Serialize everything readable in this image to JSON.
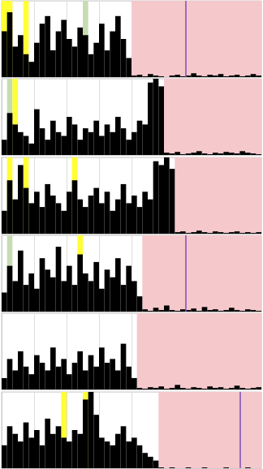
{
  "chart_data": [
    {
      "type": "histogram",
      "bins": [
        0,
        1,
        2,
        3,
        4,
        5,
        6,
        7,
        8,
        9,
        10,
        11,
        12,
        13,
        14,
        15,
        16,
        17,
        18,
        19,
        20,
        21,
        22,
        23,
        24,
        25,
        26,
        27,
        28,
        29,
        30,
        31,
        32,
        33,
        34,
        35,
        36,
        37,
        38,
        39,
        40,
        41,
        42,
        43,
        44,
        45,
        46,
        47,
        48
      ],
      "values": [
        60,
        85,
        40,
        55,
        30,
        20,
        45,
        70,
        80,
        35,
        60,
        75,
        50,
        40,
        65,
        55,
        30,
        45,
        70,
        35,
        60,
        80,
        50,
        25,
        2,
        3,
        1,
        4,
        2,
        1,
        0,
        2,
        3,
        1,
        2,
        5,
        2,
        1,
        3,
        2,
        4,
        1,
        2,
        3,
        1,
        2,
        4,
        2
      ],
      "color": "#000000",
      "xlim": [
        0,
        48
      ],
      "ylim": [
        0,
        100
      ],
      "xticks": [
        0,
        6,
        12,
        18,
        24,
        30,
        36,
        42,
        48
      ],
      "yticks": [
        0,
        100
      ],
      "grid": true,
      "tick_labels": false,
      "bands": [
        {
          "start": 0,
          "end": 2,
          "color": "#ffff33"
        },
        {
          "start": 4,
          "end": 5,
          "color": "#ffff33"
        },
        {
          "start": 15,
          "end": 16,
          "color": "#c8dcb4"
        },
        {
          "start": 24,
          "end": 48,
          "color": "#f5c8cc"
        }
      ],
      "lines": [
        {
          "x": 34,
          "color": "#7b4fb0"
        }
      ]
    },
    {
      "type": "histogram",
      "bins": [
        0,
        1,
        2,
        3,
        4,
        5,
        6,
        7,
        8,
        9,
        10,
        11,
        12,
        13,
        14,
        15,
        16,
        17,
        18,
        19,
        20,
        21,
        22,
        23,
        24,
        25,
        26,
        27,
        28,
        29,
        30,
        31,
        32,
        33,
        34,
        35,
        36,
        37,
        38,
        39,
        40,
        41,
        42,
        43,
        44,
        45,
        46,
        47,
        48
      ],
      "values": [
        20,
        55,
        40,
        30,
        25,
        15,
        60,
        35,
        20,
        45,
        30,
        25,
        50,
        40,
        20,
        35,
        30,
        45,
        25,
        40,
        30,
        50,
        35,
        20,
        30,
        45,
        40,
        95,
        100,
        90,
        3,
        2,
        4,
        1,
        2,
        3,
        5,
        2,
        1,
        3,
        2,
        4,
        3,
        2,
        5,
        3,
        2,
        1
      ],
      "color": "#000000",
      "xlim": [
        0,
        48
      ],
      "ylim": [
        0,
        100
      ],
      "xticks": [
        0,
        6,
        12,
        18,
        24,
        30,
        36,
        42,
        48
      ],
      "yticks": [
        0,
        100
      ],
      "grid": true,
      "tick_labels": false,
      "bands": [
        {
          "start": 1,
          "end": 2,
          "color": "#c8dcb4"
        },
        {
          "start": 2,
          "end": 3,
          "color": "#ffff33"
        },
        {
          "start": 30,
          "end": 48,
          "color": "#f5c8cc"
        }
      ],
      "lines": []
    },
    {
      "type": "histogram",
      "bins": [
        0,
        1,
        2,
        3,
        4,
        5,
        6,
        7,
        8,
        9,
        10,
        11,
        12,
        13,
        14,
        15,
        16,
        17,
        18,
        19,
        20,
        21,
        22,
        23,
        24,
        25,
        26,
        27,
        28,
        29,
        30,
        31,
        32,
        33,
        34,
        35,
        36,
        37,
        38,
        39,
        40,
        41,
        42,
        43,
        44,
        45,
        46,
        47,
        48
      ],
      "values": [
        30,
        70,
        45,
        90,
        60,
        40,
        55,
        35,
        65,
        50,
        40,
        30,
        55,
        70,
        45,
        35,
        50,
        60,
        40,
        55,
        30,
        45,
        65,
        40,
        50,
        35,
        55,
        45,
        95,
        90,
        100,
        85,
        2,
        3,
        1,
        2,
        4,
        2,
        1,
        3,
        2,
        1,
        2,
        3,
        1,
        2,
        1,
        2
      ],
      "color": "#000000",
      "xlim": [
        0,
        48
      ],
      "ylim": [
        0,
        100
      ],
      "xticks": [
        0,
        6,
        12,
        18,
        24,
        30,
        36,
        42,
        48
      ],
      "yticks": [
        0,
        100
      ],
      "grid": true,
      "tick_labels": false,
      "bands": [
        {
          "start": 1,
          "end": 2,
          "color": "#ffff33"
        },
        {
          "start": 4,
          "end": 5,
          "color": "#ffff33"
        },
        {
          "start": 13,
          "end": 14,
          "color": "#ffff33"
        },
        {
          "start": 32,
          "end": 48,
          "color": "#f5c8cc"
        }
      ],
      "lines": []
    },
    {
      "type": "histogram",
      "bins": [
        0,
        1,
        2,
        3,
        4,
        5,
        6,
        7,
        8,
        9,
        10,
        11,
        12,
        13,
        14,
        15,
        16,
        17,
        18,
        19,
        20,
        21,
        22,
        23,
        24,
        25,
        26,
        27,
        28,
        29,
        30,
        31,
        32,
        33,
        34,
        35,
        36,
        37,
        38,
        39,
        40,
        41,
        42,
        43,
        44,
        45,
        46,
        47,
        48
      ],
      "values": [
        25,
        60,
        40,
        80,
        35,
        50,
        30,
        70,
        55,
        45,
        85,
        40,
        60,
        35,
        75,
        50,
        40,
        65,
        30,
        55,
        45,
        70,
        35,
        60,
        40,
        20,
        3,
        1,
        5,
        2,
        8,
        2,
        1,
        3,
        2,
        4,
        1,
        6,
        2,
        3,
        1,
        2,
        5,
        2,
        1,
        3,
        2,
        1
      ],
      "color": "#000000",
      "xlim": [
        0,
        48
      ],
      "ylim": [
        0,
        100
      ],
      "xticks": [
        0,
        6,
        12,
        18,
        24,
        30,
        36,
        42,
        48
      ],
      "yticks": [
        0,
        100
      ],
      "grid": true,
      "tick_labels": false,
      "bands": [
        {
          "start": 1,
          "end": 2,
          "color": "#c8dcb4"
        },
        {
          "start": 14,
          "end": 15,
          "color": "#ffff33"
        },
        {
          "start": 26,
          "end": 48,
          "color": "#f5c8cc"
        }
      ],
      "lines": [
        {
          "x": 34,
          "color": "#7b4fb0"
        }
      ]
    },
    {
      "type": "histogram",
      "bins": [
        0,
        1,
        2,
        3,
        4,
        5,
        6,
        7,
        8,
        9,
        10,
        11,
        12,
        13,
        14,
        15,
        16,
        17,
        18,
        19,
        20,
        21,
        22,
        23,
        24,
        25,
        26,
        27,
        28,
        29,
        30,
        31,
        32,
        33,
        34,
        35,
        36,
        37,
        38,
        39,
        40,
        41,
        42,
        43,
        44,
        45,
        46,
        47,
        48
      ],
      "values": [
        15,
        40,
        25,
        50,
        30,
        20,
        45,
        35,
        25,
        55,
        30,
        40,
        20,
        35,
        50,
        25,
        45,
        30,
        55,
        35,
        40,
        25,
        60,
        30,
        15,
        2,
        1,
        3,
        2,
        4,
        1,
        2,
        6,
        2,
        1,
        3,
        2,
        1,
        4,
        2,
        3,
        1,
        2,
        5,
        2,
        1,
        2,
        3
      ],
      "color": "#000000",
      "xlim": [
        0,
        48
      ],
      "ylim": [
        0,
        100
      ],
      "xticks": [
        0,
        6,
        12,
        18,
        24,
        30,
        36,
        42,
        48
      ],
      "yticks": [
        0,
        100
      ],
      "grid": true,
      "tick_labels": false,
      "bands": [
        {
          "start": 25,
          "end": 48,
          "color": "#f5c8cc"
        }
      ],
      "lines": []
    },
    {
      "type": "histogram",
      "bins": [
        0,
        1,
        2,
        3,
        4,
        5,
        6,
        7,
        8,
        9,
        10,
        11,
        12,
        13,
        14,
        15,
        16,
        17,
        18,
        19,
        20,
        21,
        22,
        23,
        24,
        25,
        26,
        27,
        28,
        29,
        30,
        31,
        32,
        33,
        34,
        35,
        36,
        37,
        38,
        39,
        40,
        41,
        42,
        43,
        44,
        45,
        46,
        47,
        48
      ],
      "values": [
        30,
        55,
        45,
        35,
        60,
        40,
        50,
        30,
        65,
        45,
        55,
        40,
        35,
        50,
        45,
        90,
        100,
        70,
        40,
        35,
        30,
        45,
        55,
        35,
        40,
        30,
        20,
        15,
        10,
        1,
        0,
        1,
        0,
        0,
        1,
        0,
        0,
        1,
        0,
        0,
        0,
        1,
        0,
        0,
        0,
        1,
        0,
        0
      ],
      "color": "#000000",
      "xlim": [
        0,
        48
      ],
      "ylim": [
        0,
        100
      ],
      "xticks": [
        0,
        6,
        12,
        18,
        24,
        30,
        36,
        42,
        48
      ],
      "yticks": [
        0,
        100
      ],
      "grid": true,
      "tick_labels": false,
      "bands": [
        {
          "start": 11,
          "end": 12,
          "color": "#ffff33"
        },
        {
          "start": 15,
          "end": 16,
          "color": "#ffff33"
        },
        {
          "start": 29,
          "end": 48,
          "color": "#f5c8cc"
        }
      ],
      "lines": [
        {
          "x": 44,
          "color": "#7b4fb0"
        }
      ]
    }
  ]
}
